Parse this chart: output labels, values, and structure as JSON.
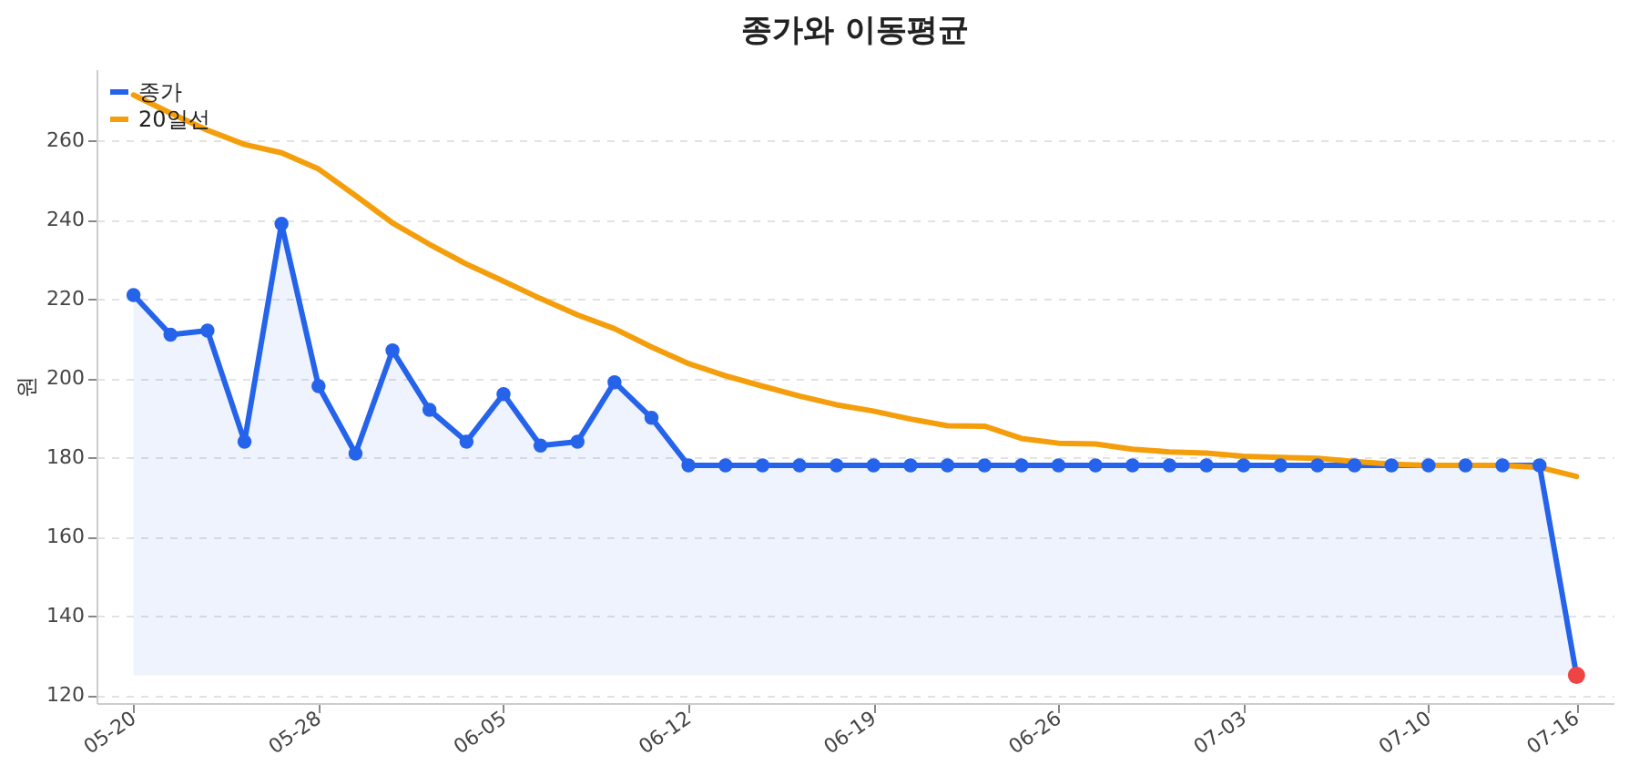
{
  "chart_data": {
    "type": "line",
    "title": "종가와 이동평균",
    "ylabel": "원",
    "categories": [
      "05-20",
      null,
      null,
      null,
      null,
      "05-28",
      null,
      null,
      null,
      null,
      "06-05",
      null,
      null,
      null,
      null,
      "06-12",
      null,
      null,
      null,
      null,
      "06-19",
      null,
      null,
      null,
      null,
      "06-26",
      null,
      null,
      null,
      null,
      "07-03",
      null,
      null,
      null,
      null,
      "07-10",
      null,
      null,
      null,
      "07-16"
    ],
    "series": [
      {
        "name": "종가",
        "type": "area",
        "color": "#2563eb",
        "marker": "circle",
        "values": [
          221,
          211,
          212,
          184,
          239,
          198,
          181,
          207,
          192,
          184,
          196,
          183,
          184,
          199,
          190,
          178,
          178,
          178,
          178,
          178,
          178,
          178,
          178,
          178,
          178,
          178,
          178,
          178,
          178,
          178,
          178,
          178,
          178,
          178,
          178,
          178,
          178,
          178,
          178,
          125
        ]
      },
      {
        "name": "20일선",
        "color": "#f59e0b",
        "values": [
          271.5,
          266.9,
          262.6,
          259,
          256.9,
          252.8,
          246.1,
          239.2,
          233.8,
          228.8,
          224.5,
          220.1,
          216,
          212.5,
          207.9,
          203.7,
          200.6,
          198,
          195.5,
          193.3,
          191.7,
          189.7,
          188,
          187.9,
          184.8,
          183.6,
          183.4,
          182.1,
          181.4,
          181.1,
          180.3,
          180,
          179.8,
          179,
          178.3,
          178,
          178,
          178,
          177.5,
          175.2
        ]
      },
      {
        "type": "scatter",
        "color": "#ef4444",
        "x": [
          "07-16"
        ],
        "values": [
          125
        ]
      }
    ],
    "ylim": [
      118,
      278
    ],
    "yticks": [
      120,
      140,
      160,
      180,
      200,
      220,
      240,
      260
    ],
    "grid": "y",
    "legend": "top left"
  }
}
